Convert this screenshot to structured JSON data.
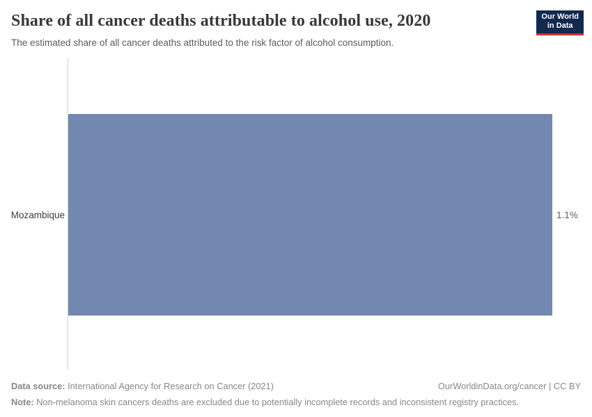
{
  "header": {
    "title": "Share of all cancer deaths attributable to alcohol use, 2020",
    "subtitle": "The estimated share of all cancer deaths attributed to the risk factor of alcohol consumption.",
    "logo": {
      "line1": "Our World",
      "line2": "in Data",
      "bg_color": "#12294e",
      "accent_color": "#d0352a"
    }
  },
  "chart_data": {
    "type": "bar",
    "orientation": "horizontal",
    "title": "Share of all cancer deaths attributable to alcohol use, 2020",
    "categories": [
      "Mozambique"
    ],
    "values": [
      1.1
    ],
    "value_labels": [
      "1.1%"
    ],
    "xlabel": "",
    "ylabel": "",
    "xlim": [
      0,
      1.1
    ],
    "grid": false,
    "legend": false,
    "bar_color": "#7288b0"
  },
  "footer": {
    "datasource_label": "Data source:",
    "datasource_text": " International Agency for Research on Cancer (2021)",
    "note_label": "Note:",
    "note_text": " Non-melanoma skin cancers deaths are excluded due to potentially incomplete records and inconsistent registry practices.",
    "link": "OurWorldinData.org/cancer | CC BY"
  }
}
